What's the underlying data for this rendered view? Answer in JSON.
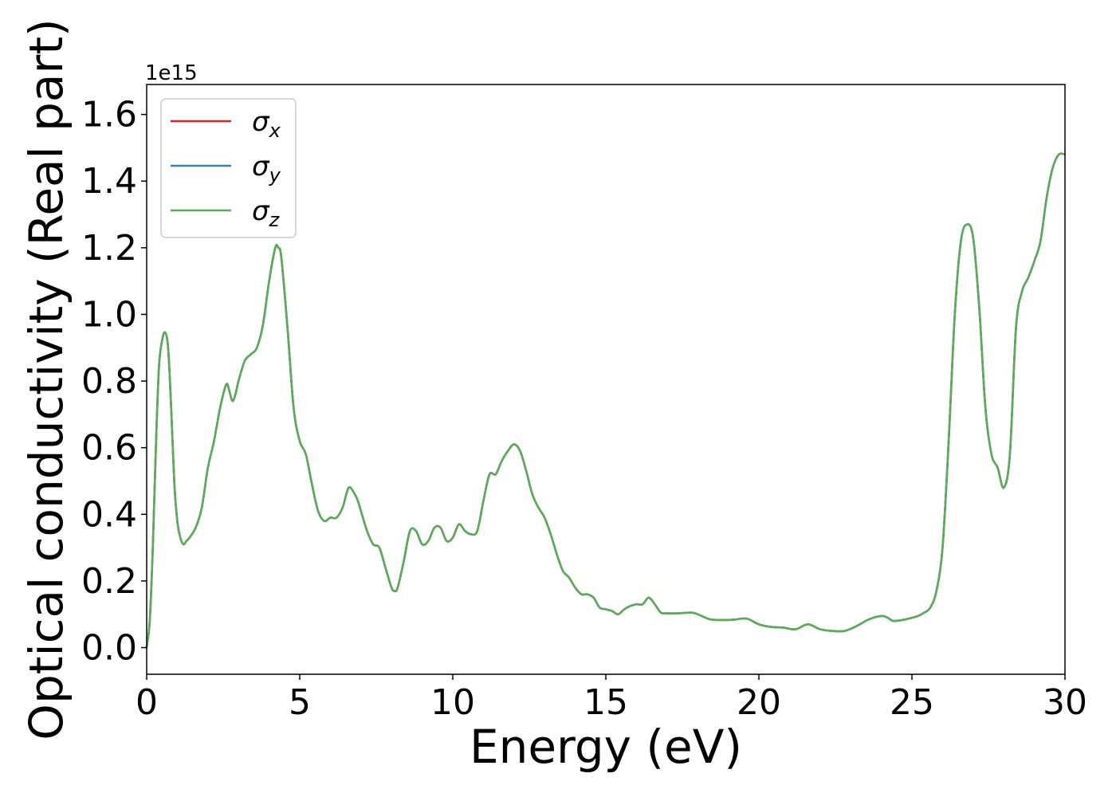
{
  "chart_data": {
    "type": "line",
    "title": "",
    "xlabel": "Energy (eV)",
    "ylabel": "Optical conductivity (Real part)",
    "y_offset_label": "1e15",
    "xlim": [
      0,
      30
    ],
    "ylim": [
      -0.08,
      1.69
    ],
    "x_ticks": [
      0,
      5,
      10,
      15,
      20,
      25,
      30
    ],
    "x_tick_labels": [
      "0",
      "5",
      "10",
      "15",
      "20",
      "25",
      "30"
    ],
    "y_ticks": [
      0.0,
      0.2,
      0.4,
      0.6,
      0.8,
      1.0,
      1.2,
      1.4,
      1.6
    ],
    "y_tick_labels": [
      "0.0",
      "0.2",
      "0.4",
      "0.6",
      "0.8",
      "1.0",
      "1.2",
      "1.4",
      "1.6"
    ],
    "grid": false,
    "legend_position": "top-left",
    "x": [
      0,
      0.1,
      0.2,
      0.3,
      0.4,
      0.5,
      0.6,
      0.7,
      0.8,
      0.9,
      1.0,
      1.1,
      1.2,
      1.3,
      1.4,
      1.6,
      1.8,
      2.0,
      2.2,
      2.4,
      2.6,
      2.7,
      2.8,
      2.9,
      3.0,
      3.2,
      3.4,
      3.6,
      3.8,
      4.0,
      4.2,
      4.3,
      4.4,
      4.6,
      4.8,
      5.0,
      5.2,
      5.4,
      5.6,
      5.8,
      6.0,
      6.2,
      6.4,
      6.6,
      6.8,
      6.9,
      7.0,
      7.2,
      7.4,
      7.6,
      7.8,
      8.0,
      8.1,
      8.2,
      8.4,
      8.6,
      8.8,
      9.0,
      9.2,
      9.4,
      9.6,
      9.8,
      10.0,
      10.2,
      10.4,
      10.6,
      10.8,
      11.0,
      11.2,
      11.4,
      11.6,
      11.8,
      12.0,
      12.2,
      12.4,
      12.6,
      12.8,
      13.0,
      13.2,
      13.4,
      13.6,
      13.8,
      14.0,
      14.2,
      14.4,
      14.6,
      14.8,
      15.0,
      15.2,
      15.4,
      15.6,
      15.8,
      16.0,
      16.2,
      16.4,
      16.6,
      16.8,
      17.0,
      17.4,
      17.8,
      18.0,
      18.4,
      18.8,
      19.2,
      19.6,
      20.0,
      20.4,
      20.8,
      21.2,
      21.6,
      22.0,
      22.4,
      22.8,
      23.2,
      23.6,
      24.0,
      24.2,
      24.4,
      24.8,
      25.2,
      25.4,
      25.6,
      25.8,
      26.0,
      26.2,
      26.4,
      26.6,
      26.8,
      27.0,
      27.2,
      27.4,
      27.6,
      27.8,
      28.0,
      28.2,
      28.4,
      28.6,
      28.8,
      29.0,
      29.2,
      29.4,
      29.6,
      29.8,
      30.0
    ],
    "series": [
      {
        "name": "σx",
        "sub": "x",
        "color": "#d62728",
        "values": [
          0.0,
          0.08,
          0.3,
          0.6,
          0.84,
          0.92,
          0.946,
          0.9,
          0.72,
          0.5,
          0.38,
          0.33,
          0.31,
          0.32,
          0.33,
          0.36,
          0.42,
          0.54,
          0.62,
          0.72,
          0.79,
          0.77,
          0.74,
          0.76,
          0.8,
          0.86,
          0.88,
          0.9,
          0.97,
          1.1,
          1.2,
          1.2,
          1.17,
          0.96,
          0.72,
          0.62,
          0.58,
          0.49,
          0.41,
          0.38,
          0.39,
          0.39,
          0.42,
          0.48,
          0.46,
          0.44,
          0.41,
          0.35,
          0.31,
          0.3,
          0.24,
          0.18,
          0.17,
          0.18,
          0.26,
          0.35,
          0.35,
          0.31,
          0.32,
          0.36,
          0.36,
          0.32,
          0.33,
          0.37,
          0.35,
          0.34,
          0.35,
          0.44,
          0.52,
          0.52,
          0.56,
          0.59,
          0.61,
          0.59,
          0.53,
          0.46,
          0.42,
          0.39,
          0.34,
          0.28,
          0.23,
          0.21,
          0.18,
          0.16,
          0.16,
          0.15,
          0.12,
          0.115,
          0.11,
          0.1,
          0.115,
          0.125,
          0.13,
          0.13,
          0.15,
          0.13,
          0.105,
          0.103,
          0.103,
          0.105,
          0.1,
          0.085,
          0.083,
          0.084,
          0.087,
          0.07,
          0.062,
          0.06,
          0.055,
          0.07,
          0.055,
          0.05,
          0.05,
          0.065,
          0.085,
          0.095,
          0.09,
          0.08,
          0.085,
          0.095,
          0.105,
          0.12,
          0.17,
          0.3,
          0.62,
          1.0,
          1.22,
          1.27,
          1.23,
          1.02,
          0.72,
          0.58,
          0.54,
          0.48,
          0.58,
          0.96,
          1.07,
          1.11,
          1.16,
          1.22,
          1.35,
          1.44,
          1.48,
          1.48
        ]
      },
      {
        "name": "σy",
        "sub": "y",
        "color": "#3a7fba",
        "values": [
          0.0,
          0.08,
          0.3,
          0.6,
          0.84,
          0.92,
          0.946,
          0.9,
          0.72,
          0.5,
          0.38,
          0.33,
          0.31,
          0.32,
          0.33,
          0.36,
          0.42,
          0.54,
          0.62,
          0.72,
          0.79,
          0.77,
          0.74,
          0.76,
          0.8,
          0.86,
          0.88,
          0.9,
          0.97,
          1.1,
          1.2,
          1.2,
          1.17,
          0.96,
          0.72,
          0.62,
          0.58,
          0.49,
          0.41,
          0.38,
          0.39,
          0.39,
          0.42,
          0.48,
          0.46,
          0.44,
          0.41,
          0.35,
          0.31,
          0.3,
          0.24,
          0.18,
          0.17,
          0.18,
          0.26,
          0.35,
          0.35,
          0.31,
          0.32,
          0.36,
          0.36,
          0.32,
          0.33,
          0.37,
          0.35,
          0.34,
          0.35,
          0.44,
          0.52,
          0.52,
          0.56,
          0.59,
          0.61,
          0.59,
          0.53,
          0.46,
          0.42,
          0.39,
          0.34,
          0.28,
          0.23,
          0.21,
          0.18,
          0.16,
          0.16,
          0.15,
          0.12,
          0.115,
          0.11,
          0.1,
          0.115,
          0.125,
          0.13,
          0.13,
          0.15,
          0.13,
          0.105,
          0.103,
          0.103,
          0.105,
          0.1,
          0.085,
          0.083,
          0.084,
          0.087,
          0.07,
          0.062,
          0.06,
          0.055,
          0.07,
          0.055,
          0.05,
          0.05,
          0.065,
          0.085,
          0.095,
          0.09,
          0.08,
          0.085,
          0.095,
          0.105,
          0.12,
          0.17,
          0.3,
          0.62,
          1.0,
          1.22,
          1.27,
          1.23,
          1.02,
          0.72,
          0.58,
          0.54,
          0.48,
          0.58,
          0.96,
          1.07,
          1.11,
          1.16,
          1.22,
          1.35,
          1.44,
          1.48,
          1.48
        ]
      },
      {
        "name": "σz",
        "sub": "z",
        "color": "#5aad55",
        "values": [
          0.0,
          0.08,
          0.3,
          0.6,
          0.84,
          0.92,
          0.946,
          0.9,
          0.72,
          0.5,
          0.38,
          0.33,
          0.31,
          0.32,
          0.33,
          0.36,
          0.42,
          0.54,
          0.62,
          0.72,
          0.79,
          0.77,
          0.74,
          0.76,
          0.8,
          0.86,
          0.88,
          0.9,
          0.97,
          1.1,
          1.2,
          1.2,
          1.17,
          0.96,
          0.72,
          0.62,
          0.58,
          0.49,
          0.41,
          0.38,
          0.39,
          0.39,
          0.42,
          0.48,
          0.46,
          0.44,
          0.41,
          0.35,
          0.31,
          0.3,
          0.24,
          0.18,
          0.17,
          0.18,
          0.26,
          0.35,
          0.35,
          0.31,
          0.32,
          0.36,
          0.36,
          0.32,
          0.33,
          0.37,
          0.35,
          0.34,
          0.35,
          0.44,
          0.52,
          0.52,
          0.56,
          0.59,
          0.61,
          0.59,
          0.53,
          0.46,
          0.42,
          0.39,
          0.34,
          0.28,
          0.23,
          0.21,
          0.18,
          0.16,
          0.16,
          0.15,
          0.12,
          0.115,
          0.11,
          0.1,
          0.115,
          0.125,
          0.13,
          0.13,
          0.15,
          0.13,
          0.105,
          0.103,
          0.103,
          0.105,
          0.1,
          0.085,
          0.083,
          0.084,
          0.087,
          0.07,
          0.062,
          0.06,
          0.055,
          0.07,
          0.055,
          0.05,
          0.05,
          0.065,
          0.085,
          0.095,
          0.09,
          0.08,
          0.085,
          0.095,
          0.105,
          0.12,
          0.17,
          0.3,
          0.62,
          1.0,
          1.22,
          1.27,
          1.23,
          1.02,
          0.72,
          0.58,
          0.54,
          0.48,
          0.58,
          0.96,
          1.07,
          1.11,
          1.16,
          1.22,
          1.35,
          1.44,
          1.48,
          1.48
        ]
      }
    ]
  }
}
